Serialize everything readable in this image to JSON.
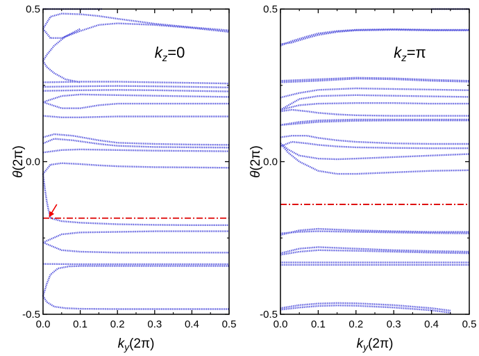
{
  "chart_data": [
    {
      "type": "line",
      "panel": "left",
      "annotation": {
        "var": "k",
        "sub": "z",
        "text": "=0"
      },
      "xlabel": {
        "var": "k",
        "sub": "y",
        "unit": "(2π)"
      },
      "ylabel": {
        "var": "θ",
        "unit": "(2π)"
      },
      "xlim": [
        0,
        0.5
      ],
      "ylim": [
        -0.5,
        0.5
      ],
      "xticks": [
        "0.0",
        "0.1",
        "0.2",
        "0.3",
        "0.4",
        "0.5"
      ],
      "yticks": [
        "-0.5",
        "0.0",
        "0.5"
      ],
      "reference_line": {
        "y": -0.185,
        "color": "#dd0000",
        "style": "dash-dot"
      },
      "arrow": {
        "from": [
          0.037,
          -0.14
        ],
        "to": [
          0.017,
          -0.18
        ],
        "color": "#ee0000"
      },
      "series_color": "#5555dd",
      "series": [
        {
          "name": "top-flat",
          "x": [
            0.0,
            0.16
          ],
          "y": [
            0.5,
            0.5
          ]
        },
        {
          "name": "loop-upper",
          "x": [
            0.0,
            0.02,
            0.05,
            0.1,
            0.15,
            0.2,
            0.3,
            0.4,
            0.5
          ],
          "y": [
            0.435,
            0.475,
            0.485,
            0.483,
            0.477,
            0.468,
            0.452,
            0.44,
            0.43
          ]
        },
        {
          "name": "loop-lower",
          "x": [
            0.0,
            0.02,
            0.05,
            0.1,
            0.15,
            0.2,
            0.3,
            0.4,
            0.5
          ],
          "y": [
            0.435,
            0.405,
            0.405,
            0.428,
            0.448,
            0.453,
            0.448,
            0.438,
            0.425
          ]
        },
        {
          "name": "cusp-up",
          "x": [
            0.0,
            0.01,
            0.03,
            0.06,
            0.1
          ],
          "y": [
            0.33,
            0.35,
            0.38,
            0.41,
            0.435
          ]
        },
        {
          "name": "cusp-down",
          "x": [
            0.0,
            0.01,
            0.03,
            0.06,
            0.1
          ],
          "y": [
            0.33,
            0.31,
            0.29,
            0.27,
            0.26
          ]
        },
        {
          "name": "band-26",
          "x": [
            0.0,
            0.1,
            0.2,
            0.3,
            0.4,
            0.5
          ],
          "y": [
            0.26,
            0.262,
            0.262,
            0.26,
            0.258,
            0.256
          ]
        },
        {
          "name": "band-245",
          "x": [
            0.0,
            0.1,
            0.2,
            0.3,
            0.4,
            0.5
          ],
          "y": [
            0.245,
            0.247,
            0.248,
            0.247,
            0.245,
            0.243
          ]
        },
        {
          "name": "band-23",
          "x": [
            0.0,
            0.1,
            0.2,
            0.3,
            0.4,
            0.5
          ],
          "y": [
            0.232,
            0.234,
            0.235,
            0.234,
            0.232,
            0.23
          ]
        },
        {
          "name": "band-21",
          "x": [
            0.0,
            0.05,
            0.1,
            0.2,
            0.3,
            0.4,
            0.5
          ],
          "y": [
            0.195,
            0.215,
            0.22,
            0.218,
            0.216,
            0.214,
            0.212
          ]
        },
        {
          "name": "band-17",
          "x": [
            0.0,
            0.05,
            0.1,
            0.15,
            0.2,
            0.3,
            0.4,
            0.5
          ],
          "y": [
            0.195,
            0.175,
            0.175,
            0.185,
            0.19,
            0.19,
            0.19,
            0.19
          ]
        },
        {
          "name": "band-145",
          "x": [
            0.0,
            0.05,
            0.1,
            0.2,
            0.3,
            0.4,
            0.5
          ],
          "y": [
            0.15,
            0.145,
            0.145,
            0.148,
            0.148,
            0.148,
            0.148
          ]
        },
        {
          "name": "band-09",
          "x": [
            0.0,
            0.03,
            0.08,
            0.15,
            0.2,
            0.3,
            0.4,
            0.5
          ],
          "y": [
            0.08,
            0.09,
            0.085,
            0.07,
            0.062,
            0.058,
            0.056,
            0.055
          ]
        },
        {
          "name": "band-06",
          "x": [
            0.0,
            0.03,
            0.08,
            0.15,
            0.2,
            0.3,
            0.4,
            0.5
          ],
          "y": [
            0.06,
            0.075,
            0.07,
            0.058,
            0.052,
            0.048,
            0.047,
            0.046
          ]
        },
        {
          "name": "band-03",
          "x": [
            0.0,
            0.05,
            0.1,
            0.2,
            0.3,
            0.4,
            0.5
          ],
          "y": [
            0.03,
            0.038,
            0.04,
            0.038,
            0.036,
            0.035,
            0.034
          ]
        },
        {
          "name": "band-dip-top",
          "x": [
            0.0,
            0.02,
            0.05,
            0.1,
            0.15,
            0.2,
            0.3,
            0.4,
            0.5
          ],
          "y": [
            -0.04,
            -0.01,
            -0.005,
            -0.008,
            -0.012,
            -0.015,
            -0.018,
            -0.019,
            -0.02
          ]
        },
        {
          "name": "band-dip-left",
          "x": [
            0.0,
            0.005,
            0.01,
            0.015,
            0.02
          ],
          "y": [
            -0.04,
            -0.09,
            -0.13,
            -0.16,
            -0.185
          ]
        },
        {
          "name": "band-minus-19",
          "x": [
            0.02,
            0.05,
            0.1,
            0.2,
            0.3,
            0.4,
            0.5
          ],
          "y": [
            -0.185,
            -0.195,
            -0.2,
            -0.205,
            -0.207,
            -0.208,
            -0.208
          ]
        },
        {
          "name": "band-minus-23",
          "x": [
            0.0,
            0.05,
            0.1,
            0.2,
            0.3,
            0.4,
            0.5
          ],
          "y": [
            -0.265,
            -0.238,
            -0.232,
            -0.23,
            -0.228,
            -0.228,
            -0.228
          ]
        },
        {
          "name": "band-minus-29",
          "x": [
            0.0,
            0.05,
            0.1,
            0.2,
            0.3,
            0.4,
            0.5
          ],
          "y": [
            -0.265,
            -0.29,
            -0.295,
            -0.298,
            -0.298,
            -0.298,
            -0.298
          ]
        },
        {
          "name": "band-minus-33",
          "x": [
            0.0,
            0.1,
            0.2,
            0.3,
            0.4,
            0.5
          ],
          "y": [
            -0.335,
            -0.336,
            -0.336,
            -0.336,
            -0.336,
            -0.336
          ]
        },
        {
          "name": "band-minus-36",
          "x": [
            0.0,
            0.01,
            0.02,
            0.04,
            0.07,
            0.1,
            0.2,
            0.3,
            0.4,
            0.5
          ],
          "y": [
            -0.44,
            -0.4,
            -0.37,
            -0.35,
            -0.343,
            -0.342,
            -0.342,
            -0.342,
            -0.342,
            -0.342
          ]
        },
        {
          "name": "band-minus-48",
          "x": [
            0.0,
            0.01,
            0.03,
            0.06,
            0.1,
            0.2,
            0.3,
            0.4,
            0.5
          ],
          "y": [
            -0.44,
            -0.46,
            -0.475,
            -0.48,
            -0.482,
            -0.483,
            -0.483,
            -0.483,
            -0.483
          ]
        }
      ]
    },
    {
      "type": "line",
      "panel": "right",
      "annotation": {
        "var": "k",
        "sub": "z",
        "text": "=π"
      },
      "xlabel": {
        "var": "k",
        "sub": "y",
        "unit": "(2π)"
      },
      "ylabel": {
        "var": "θ",
        "unit": "(2π)"
      },
      "xlim": [
        0,
        0.5
      ],
      "ylim": [
        -0.5,
        0.5
      ],
      "xticks": [
        "0.0",
        "0.1",
        "0.2",
        "0.3",
        "0.4",
        "0.5"
      ],
      "yticks": [
        "-0.5",
        "0.0",
        "0.5"
      ],
      "reference_line": {
        "y": -0.14,
        "color": "#dd0000",
        "style": "dash-dot"
      },
      "series_color": "#5555dd",
      "series": [
        {
          "name": "top-flat",
          "x": [
            0.4,
            0.5
          ],
          "y": [
            0.5,
            0.5
          ]
        },
        {
          "name": "band-38a",
          "x": [
            0.0,
            0.03,
            0.07,
            0.1,
            0.15,
            0.2,
            0.3,
            0.4,
            0.5
          ],
          "y": [
            0.385,
            0.39,
            0.405,
            0.415,
            0.425,
            0.43,
            0.432,
            0.43,
            0.43
          ]
        },
        {
          "name": "band-38b",
          "x": [
            0.0,
            0.03,
            0.07,
            0.1,
            0.15,
            0.2,
            0.3,
            0.4,
            0.5
          ],
          "y": [
            0.38,
            0.395,
            0.41,
            0.42,
            0.428,
            0.432,
            0.434,
            0.432,
            0.432
          ]
        },
        {
          "name": "band-27a",
          "x": [
            0.0,
            0.1,
            0.2,
            0.3,
            0.4,
            0.5
          ],
          "y": [
            0.26,
            0.265,
            0.272,
            0.27,
            0.265,
            0.262
          ]
        },
        {
          "name": "band-27b",
          "x": [
            0.0,
            0.1,
            0.2,
            0.3,
            0.4,
            0.5
          ],
          "y": [
            0.265,
            0.27,
            0.275,
            0.273,
            0.268,
            0.265
          ]
        },
        {
          "name": "band-23",
          "x": [
            0.0,
            0.05,
            0.1,
            0.2,
            0.3,
            0.4,
            0.5
          ],
          "y": [
            0.21,
            0.225,
            0.235,
            0.24,
            0.238,
            0.236,
            0.234
          ]
        },
        {
          "name": "band-21",
          "x": [
            0.0,
            0.05,
            0.1,
            0.2,
            0.3,
            0.4,
            0.5
          ],
          "y": [
            0.17,
            0.205,
            0.215,
            0.218,
            0.216,
            0.214,
            0.212
          ]
        },
        {
          "name": "band-19",
          "x": [
            0.0,
            0.05,
            0.1,
            0.2,
            0.3,
            0.4,
            0.5
          ],
          "y": [
            0.17,
            0.185,
            0.19,
            0.192,
            0.192,
            0.19,
            0.19
          ]
        },
        {
          "name": "band-16",
          "x": [
            0.0,
            0.03,
            0.07,
            0.1,
            0.15,
            0.2,
            0.3,
            0.4,
            0.5
          ],
          "y": [
            0.165,
            0.17,
            0.165,
            0.16,
            0.155,
            0.152,
            0.15,
            0.15,
            0.15
          ]
        },
        {
          "name": "band-13a",
          "x": [
            0.0,
            0.05,
            0.1,
            0.2,
            0.3,
            0.4,
            0.5
          ],
          "y": [
            0.12,
            0.13,
            0.135,
            0.138,
            0.138,
            0.138,
            0.138
          ]
        },
        {
          "name": "band-13b",
          "x": [
            0.0,
            0.05,
            0.1,
            0.2,
            0.3,
            0.4,
            0.5
          ],
          "y": [
            0.12,
            0.125,
            0.13,
            0.134,
            0.135,
            0.135,
            0.135
          ]
        },
        {
          "name": "band-08",
          "x": [
            0.0,
            0.03,
            0.07,
            0.1,
            0.15,
            0.2,
            0.3,
            0.4,
            0.5
          ],
          "y": [
            0.08,
            0.085,
            0.085,
            0.078,
            0.07,
            0.065,
            0.06,
            0.058,
            0.058
          ]
        },
        {
          "name": "band-05",
          "x": [
            0.0,
            0.03,
            0.07,
            0.1,
            0.15,
            0.2,
            0.3,
            0.4,
            0.5
          ],
          "y": [
            0.05,
            0.065,
            0.06,
            0.055,
            0.05,
            0.047,
            0.045,
            0.044,
            0.044
          ]
        },
        {
          "name": "band-02",
          "x": [
            0.0,
            0.02,
            0.05,
            0.1,
            0.15,
            0.2,
            0.3,
            0.4,
            0.5
          ],
          "y": [
            0.06,
            0.04,
            0.02,
            0.01,
            0.008,
            0.01,
            0.015,
            0.02,
            0.025
          ]
        },
        {
          "name": "band-dip",
          "x": [
            0.0,
            0.02,
            0.05,
            0.1,
            0.15,
            0.2,
            0.3,
            0.4,
            0.5
          ],
          "y": [
            0.06,
            0.03,
            0.0,
            -0.03,
            -0.04,
            -0.04,
            -0.035,
            -0.03,
            -0.028
          ]
        },
        {
          "name": "band-minus-23a",
          "x": [
            0.0,
            0.05,
            0.1,
            0.2,
            0.3,
            0.4,
            0.5
          ],
          "y": [
            -0.24,
            -0.225,
            -0.22,
            -0.225,
            -0.228,
            -0.23,
            -0.23
          ]
        },
        {
          "name": "band-minus-23b",
          "x": [
            0.0,
            0.05,
            0.1,
            0.2,
            0.3,
            0.4,
            0.5
          ],
          "y": [
            -0.235,
            -0.23,
            -0.228,
            -0.23,
            -0.232,
            -0.234,
            -0.235
          ]
        },
        {
          "name": "band-minus-29a",
          "x": [
            0.0,
            0.05,
            0.1,
            0.2,
            0.3,
            0.4,
            0.5
          ],
          "y": [
            -0.3,
            -0.285,
            -0.28,
            -0.285,
            -0.29,
            -0.293,
            -0.295
          ]
        },
        {
          "name": "band-minus-29b",
          "x": [
            0.0,
            0.05,
            0.1,
            0.2,
            0.3,
            0.4,
            0.5
          ],
          "y": [
            -0.305,
            -0.295,
            -0.29,
            -0.292,
            -0.295,
            -0.298,
            -0.3
          ]
        },
        {
          "name": "band-minus-33a",
          "x": [
            0.0,
            0.1,
            0.2,
            0.3,
            0.4,
            0.5
          ],
          "y": [
            -0.33,
            -0.33,
            -0.33,
            -0.33,
            -0.33,
            -0.33
          ]
        },
        {
          "name": "band-minus-33b",
          "x": [
            0.0,
            0.1,
            0.2,
            0.3,
            0.4,
            0.5
          ],
          "y": [
            -0.338,
            -0.338,
            -0.338,
            -0.338,
            -0.338,
            -0.338
          ]
        },
        {
          "name": "band-minus-47a",
          "x": [
            0.0,
            0.05,
            0.1,
            0.15,
            0.2,
            0.3,
            0.4,
            0.45
          ],
          "y": [
            -0.48,
            -0.47,
            -0.465,
            -0.463,
            -0.464,
            -0.47,
            -0.48,
            -0.488
          ]
        },
        {
          "name": "band-minus-47b",
          "x": [
            0.0,
            0.05,
            0.1,
            0.15,
            0.2,
            0.3,
            0.4,
            0.45
          ],
          "y": [
            -0.485,
            -0.478,
            -0.473,
            -0.471,
            -0.472,
            -0.478,
            -0.487,
            -0.495
          ]
        }
      ]
    }
  ]
}
